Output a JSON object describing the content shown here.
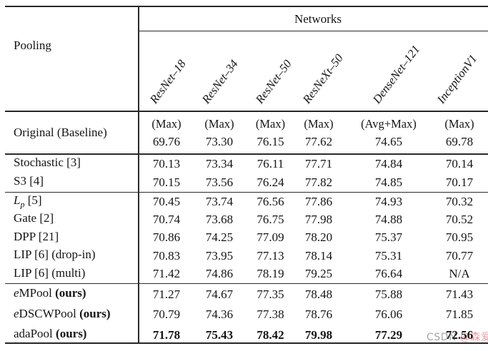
{
  "table": {
    "group_header": "Networks",
    "row_header": "Pooling",
    "columns": [
      "ResNet–18",
      "ResNet–34",
      "ResNet–50",
      "ResNeXt–50",
      "DenseNet–121",
      "InceptionV1"
    ],
    "baseline": {
      "label": "Original (Baseline)",
      "modes": [
        "(Max)",
        "(Max)",
        "(Max)",
        "(Max)",
        "(Avg+Max)",
        "(Max)"
      ],
      "values": [
        "69.76",
        "73.30",
        "76.15",
        "77.62",
        "74.65",
        "69.78"
      ]
    },
    "rows": [
      {
        "label": "Stochastic [3]",
        "values": [
          "70.13",
          "73.34",
          "76.11",
          "77.71",
          "74.84",
          "70.14"
        ]
      },
      {
        "label": "S3 [4]",
        "values": [
          "70.15",
          "73.56",
          "76.24",
          "77.82",
          "74.85",
          "70.17"
        ]
      },
      {
        "label_italic": "L",
        "label_sub": "p",
        "label": " [5]",
        "values": [
          "70.45",
          "73.74",
          "76.56",
          "77.86",
          "74.93",
          "70.32"
        ]
      },
      {
        "label": "Gate [2]",
        "values": [
          "70.74",
          "73.68",
          "76.75",
          "77.98",
          "74.88",
          "70.52"
        ]
      },
      {
        "label": "DPP [21]",
        "values": [
          "70.86",
          "74.25",
          "77.09",
          "78.20",
          "75.37",
          "70.95"
        ]
      },
      {
        "label": "LIP [6] (drop-in)",
        "values": [
          "70.83",
          "73.95",
          "77.13",
          "78.14",
          "75.31",
          "70.77"
        ]
      },
      {
        "label": "LIP [6] (multi)",
        "values": [
          "71.42",
          "74.86",
          "78.19",
          "79.25",
          "76.64",
          "N/A"
        ]
      },
      {
        "label_italic": "e",
        "label": "MPool ",
        "label_bold": "(ours)",
        "values": [
          "71.27",
          "74.67",
          "77.35",
          "78.48",
          "75.88",
          "71.43"
        ]
      },
      {
        "label_italic": "e",
        "label": "DSCWPool ",
        "label_bold": "(ours)",
        "values": [
          "70.79",
          "74.36",
          "77.38",
          "78.76",
          "76.06",
          "71.85"
        ]
      },
      {
        "label": "adaPool ",
        "label_bold": "(ours)",
        "values": [
          "71.78",
          "75.43",
          "78.42",
          "79.98",
          "77.29",
          "72.56"
        ]
      }
    ]
  },
  "watermark": {
    "prefix": "CSDN ",
    "handle": "@森爱。",
    "prefix_color": "#a6a6a6",
    "handle_color": "#ec9aa6"
  }
}
